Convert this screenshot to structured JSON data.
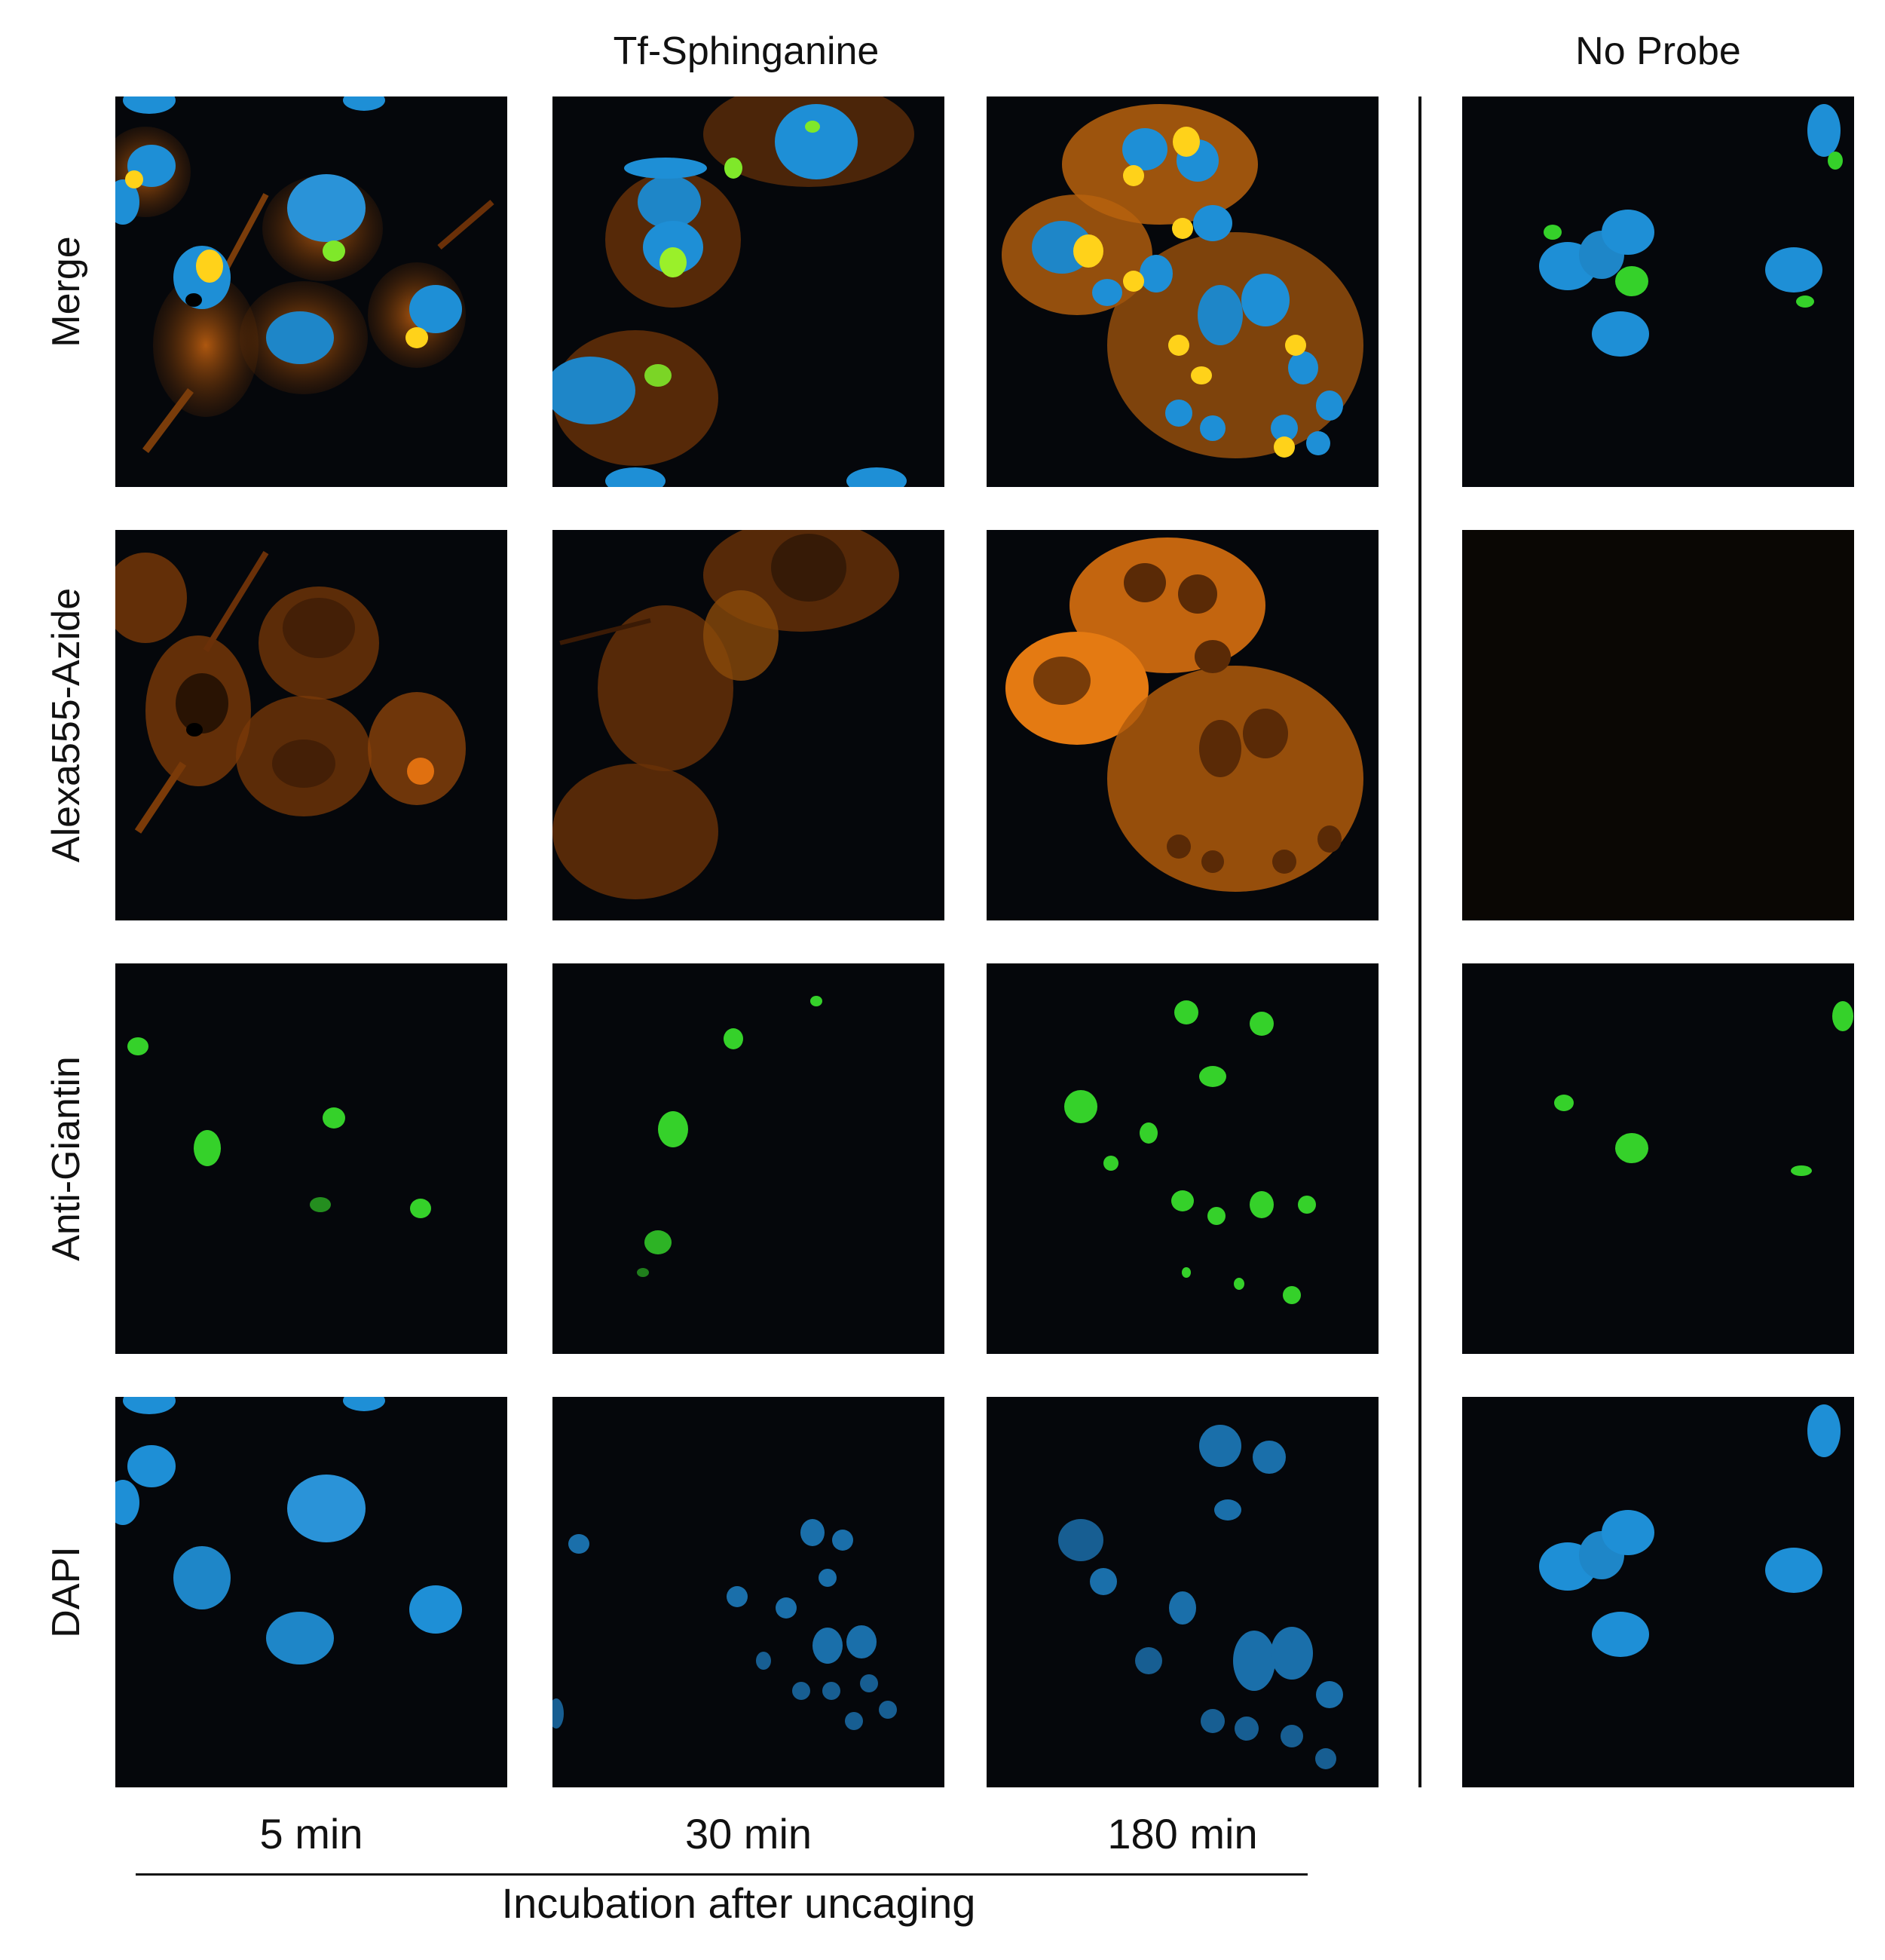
{
  "headers": {
    "probe_group": "Tf-Sphinganine",
    "control_group": "No Probe"
  },
  "rows": [
    {
      "label": "Merge"
    },
    {
      "label": "Alexa555-Azide"
    },
    {
      "label": "Anti-Giantin"
    },
    {
      "label": "DAPI"
    }
  ],
  "columns": [
    {
      "label": "5 min"
    },
    {
      "label": "30 min"
    },
    {
      "label": "180 min"
    },
    {
      "label": ""
    }
  ],
  "axis_caption": "Incubation after uncaging",
  "colors": {
    "background": "#05070b",
    "dapi_blue": "#1e8fd6",
    "giantin_green": "#35d12a",
    "alexa_orange": "#f07a10",
    "merge_yellow": "#ffd21a"
  }
}
